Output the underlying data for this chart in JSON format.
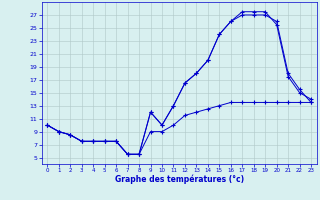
{
  "xlabel": "Graphe des températures (°c)",
  "bg_color": "#d8f0f0",
  "line_color": "#0000cc",
  "hours": [
    0,
    1,
    2,
    3,
    4,
    5,
    6,
    7,
    8,
    9,
    10,
    11,
    12,
    13,
    14,
    15,
    16,
    17,
    18,
    19,
    20,
    21,
    22,
    23
  ],
  "curve_upper": [
    10,
    9,
    8.5,
    7.5,
    7.5,
    7.5,
    7.5,
    5.5,
    5.5,
    12,
    10,
    13,
    16.5,
    18,
    20,
    24,
    26,
    27.5,
    27.5,
    27.5,
    25.5,
    17.5,
    15,
    14
  ],
  "curve_middle": [
    10,
    9,
    8.5,
    7.5,
    7.5,
    7.5,
    7.5,
    5.5,
    5.5,
    12,
    10,
    13,
    16.5,
    18,
    20,
    24,
    26,
    27,
    27,
    27,
    26,
    18,
    15.5,
    13.5
  ],
  "curve_lower": [
    10,
    9,
    8.5,
    7.5,
    7.5,
    7.5,
    7.5,
    5.5,
    5.5,
    9,
    9,
    10,
    11.5,
    12,
    12.5,
    13,
    13.5,
    13.5,
    13.5,
    13.5,
    13.5,
    13.5,
    13.5,
    13.5
  ],
  "ylim": [
    4,
    29
  ],
  "yticks": [
    5,
    7,
    9,
    11,
    13,
    15,
    17,
    19,
    21,
    23,
    25,
    27
  ],
  "xticks": [
    0,
    1,
    2,
    3,
    4,
    5,
    6,
    7,
    8,
    9,
    10,
    11,
    12,
    13,
    14,
    15,
    16,
    17,
    18,
    19,
    20,
    21,
    22,
    23
  ]
}
